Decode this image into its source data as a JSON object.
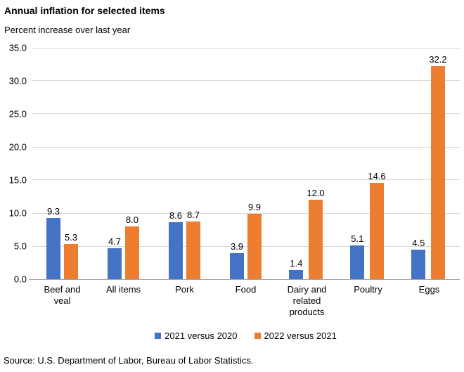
{
  "chart_data": {
    "type": "bar",
    "title": "Annual inflation for selected items",
    "subtitle": "Percent increase over last year",
    "categories": [
      "Beef and veal",
      "All items",
      "Pork",
      "Food",
      "Dairy and related products",
      "Poultry",
      "Eggs"
    ],
    "series": [
      {
        "name": "2021 versus 2020",
        "color": "#4472c4",
        "values": [
          9.3,
          4.7,
          8.6,
          3.9,
          1.4,
          5.1,
          4.5
        ]
      },
      {
        "name": "2022 versus 2021",
        "color": "#ed7d31",
        "values": [
          5.3,
          8.0,
          8.7,
          9.9,
          12.0,
          14.6,
          32.2
        ]
      }
    ],
    "ylim": [
      0,
      35
    ],
    "ytick_step": 5,
    "ytick_labels": [
      "35.0",
      "30.0",
      "25.0",
      "20.0",
      "15.0",
      "10.0",
      "5.0",
      "0.0"
    ],
    "grid": true,
    "legend_position": "bottom",
    "value_labels_decimals": 1
  },
  "source": "Source: U.S. Department of Labor, Bureau of Labor Statistics.",
  "colors": {
    "series1": "#4472c4",
    "series2": "#ed7d31",
    "gridline": "#d9d9d9",
    "axis_line": "#a6a6a6",
    "text": "#000000",
    "background": "#ffffff"
  }
}
